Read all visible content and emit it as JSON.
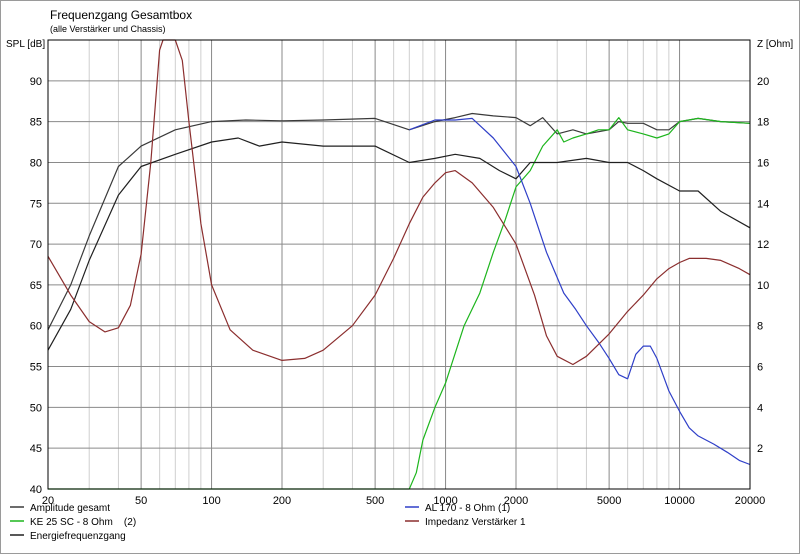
{
  "chart_data": {
    "type": "line",
    "title": "Frequenzgang Gesamtbox",
    "subtitle": "(alle Verstärker und Chassis)",
    "y_left_label": "SPL [dB]",
    "y_right_label": "Z [Ohm]",
    "x_scale": "log",
    "xlim": [
      20,
      20000
    ],
    "ylim_left": [
      40,
      95
    ],
    "ylim_right": [
      0,
      22
    ],
    "grid": true,
    "x_ticks": [
      20,
      50,
      100,
      200,
      500,
      1000,
      2000,
      5000,
      10000,
      20000
    ],
    "x_tick_labels": [
      "20",
      "50",
      "100",
      "200",
      "500",
      "1000",
      "2000",
      "5000",
      "10000",
      "20000"
    ],
    "y_left_ticks": [
      40,
      45,
      50,
      55,
      60,
      65,
      70,
      75,
      80,
      85,
      90
    ],
    "y_left_tick_labels": [
      "40",
      "45",
      "50",
      "55",
      "60",
      "65",
      "70",
      "75",
      "80",
      "85",
      "90"
    ],
    "y_right_ticks": [
      2,
      4,
      6,
      8,
      10,
      12,
      14,
      16,
      18,
      20
    ],
    "y_right_tick_labels": [
      "2",
      "4",
      "6",
      "8",
      "10",
      "12",
      "14",
      "16",
      "18",
      "20"
    ],
    "series": [
      {
        "name": "Amplitude gesamt",
        "color": "#3a3a3a",
        "axis": "left",
        "points": [
          [
            20,
            59.5
          ],
          [
            25,
            65
          ],
          [
            30,
            71
          ],
          [
            40,
            79.5
          ],
          [
            50,
            82
          ],
          [
            70,
            84
          ],
          [
            100,
            85
          ],
          [
            140,
            85.2
          ],
          [
            200,
            85.1
          ],
          [
            300,
            85.2
          ],
          [
            500,
            85.4
          ],
          [
            700,
            84
          ],
          [
            900,
            85
          ],
          [
            1100,
            85.5
          ],
          [
            1300,
            86
          ],
          [
            1600,
            85.7
          ],
          [
            2000,
            85.5
          ],
          [
            2300,
            84.5
          ],
          [
            2600,
            85.5
          ],
          [
            3000,
            83.5
          ],
          [
            3500,
            84
          ],
          [
            4000,
            83.5
          ],
          [
            5000,
            84
          ],
          [
            5500,
            85
          ],
          [
            6000,
            84.8
          ],
          [
            7000,
            84.8
          ],
          [
            8000,
            84
          ],
          [
            9000,
            84
          ],
          [
            10000,
            85
          ],
          [
            12000,
            85.4
          ],
          [
            15000,
            85
          ],
          [
            20000,
            84.8
          ]
        ]
      },
      {
        "name": "KE 25 SC - 8 Ohm    (2)",
        "color": "#1db51d",
        "axis": "left",
        "points": [
          [
            20,
            40
          ],
          [
            700,
            40
          ],
          [
            750,
            42
          ],
          [
            800,
            46
          ],
          [
            900,
            50
          ],
          [
            1000,
            53
          ],
          [
            1200,
            60
          ],
          [
            1400,
            64
          ],
          [
            1600,
            69
          ],
          [
            1800,
            73
          ],
          [
            2000,
            77
          ],
          [
            2300,
            79
          ],
          [
            2600,
            82
          ],
          [
            3000,
            84
          ],
          [
            3200,
            82.5
          ],
          [
            3500,
            83
          ],
          [
            4000,
            83.5
          ],
          [
            4500,
            84
          ],
          [
            5000,
            84
          ],
          [
            5500,
            85.5
          ],
          [
            6000,
            84
          ],
          [
            7000,
            83.5
          ],
          [
            8000,
            83
          ],
          [
            9000,
            83.5
          ],
          [
            10000,
            85
          ],
          [
            12000,
            85.4
          ],
          [
            15000,
            85
          ],
          [
            20000,
            84.8
          ]
        ]
      },
      {
        "name": "Energiefrequenzgang",
        "color": "#202020",
        "axis": "left",
        "points": [
          [
            20,
            57
          ],
          [
            25,
            62
          ],
          [
            30,
            68
          ],
          [
            40,
            76
          ],
          [
            50,
            79.5
          ],
          [
            70,
            81
          ],
          [
            100,
            82.5
          ],
          [
            130,
            83
          ],
          [
            160,
            82
          ],
          [
            200,
            82.5
          ],
          [
            300,
            82
          ],
          [
            500,
            82
          ],
          [
            700,
            80
          ],
          [
            900,
            80.5
          ],
          [
            1100,
            81
          ],
          [
            1400,
            80.5
          ],
          [
            1700,
            79
          ],
          [
            2000,
            78
          ],
          [
            2300,
            80
          ],
          [
            3000,
            80
          ],
          [
            4000,
            80.5
          ],
          [
            5000,
            80
          ],
          [
            6000,
            80
          ],
          [
            7000,
            79
          ],
          [
            8000,
            78
          ],
          [
            10000,
            76.5
          ],
          [
            12000,
            76.5
          ],
          [
            15000,
            74
          ],
          [
            20000,
            72
          ]
        ]
      },
      {
        "name": "AL 170 - 8 Ohm (1)",
        "color": "#2f3fc8",
        "axis": "left",
        "points": [
          [
            700,
            84
          ],
          [
            900,
            85.2
          ],
          [
            1100,
            85.2
          ],
          [
            1300,
            85.4
          ],
          [
            1600,
            83
          ],
          [
            2000,
            79.5
          ],
          [
            2300,
            75
          ],
          [
            2700,
            69
          ],
          [
            3200,
            64
          ],
          [
            3600,
            62
          ],
          [
            4000,
            60
          ],
          [
            4500,
            58
          ],
          [
            5000,
            56
          ],
          [
            5500,
            54
          ],
          [
            6000,
            53.5
          ],
          [
            6500,
            56.5
          ],
          [
            7000,
            57.5
          ],
          [
            7500,
            57.5
          ],
          [
            8000,
            56
          ],
          [
            9000,
            52
          ],
          [
            10000,
            49.5
          ],
          [
            11000,
            47.5
          ],
          [
            12000,
            46.5
          ],
          [
            14000,
            45.5
          ],
          [
            16000,
            44.5
          ],
          [
            18000,
            43.5
          ],
          [
            20000,
            43
          ]
        ]
      },
      {
        "name": "Impedanz Verstärker 1",
        "color": "#8b2e2e",
        "axis": "right",
        "points": [
          [
            20,
            11.4
          ],
          [
            25,
            9.5
          ],
          [
            30,
            8.2
          ],
          [
            35,
            7.7
          ],
          [
            40,
            7.9
          ],
          [
            45,
            9
          ],
          [
            50,
            11.5
          ],
          [
            55,
            16
          ],
          [
            60,
            21.5
          ],
          [
            62,
            22
          ],
          [
            70,
            22
          ],
          [
            75,
            21
          ],
          [
            80,
            18
          ],
          [
            90,
            13
          ],
          [
            100,
            10
          ],
          [
            120,
            7.8
          ],
          [
            150,
            6.8
          ],
          [
            200,
            6.3
          ],
          [
            250,
            6.4
          ],
          [
            300,
            6.8
          ],
          [
            400,
            8
          ],
          [
            500,
            9.5
          ],
          [
            600,
            11.3
          ],
          [
            700,
            13
          ],
          [
            800,
            14.3
          ],
          [
            900,
            15
          ],
          [
            1000,
            15.5
          ],
          [
            1100,
            15.6
          ],
          [
            1300,
            15
          ],
          [
            1600,
            13.8
          ],
          [
            2000,
            12
          ],
          [
            2400,
            9.5
          ],
          [
            2700,
            7.5
          ],
          [
            3000,
            6.5
          ],
          [
            3500,
            6.1
          ],
          [
            4000,
            6.5
          ],
          [
            5000,
            7.6
          ],
          [
            6000,
            8.7
          ],
          [
            7000,
            9.5
          ],
          [
            8000,
            10.3
          ],
          [
            9000,
            10.8
          ],
          [
            10000,
            11.1
          ],
          [
            11000,
            11.3
          ],
          [
            13000,
            11.3
          ],
          [
            15000,
            11.2
          ],
          [
            18000,
            10.8
          ],
          [
            20000,
            10.5
          ]
        ]
      }
    ]
  }
}
